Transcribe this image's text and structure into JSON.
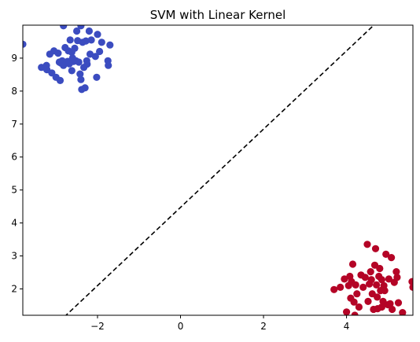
{
  "chart_data": {
    "type": "scatter",
    "title": "SVM with Linear Kernel",
    "xlabel": "",
    "ylabel": "",
    "xlim": [
      -3.8,
      5.6
    ],
    "ylim": [
      1.2,
      10.0
    ],
    "xticks": [
      -2,
      0,
      2,
      4
    ],
    "yticks": [
      2,
      3,
      4,
      5,
      6,
      7,
      8,
      9
    ],
    "grid": false,
    "legend": false,
    "colors": {
      "class_a": "#3b4cc0",
      "class_b": "#b40426",
      "boundary": "#000000"
    },
    "decision_boundary": {
      "style": "dashed",
      "points": [
        [
          -2.8,
          1.15
        ],
        [
          4.7,
          10.05
        ]
      ]
    },
    "series": [
      {
        "points": [
          [
            -3.8,
            9.42
          ],
          [
            -3.35,
            8.72
          ],
          [
            -3.23,
            8.78
          ],
          [
            -3.22,
            8.65
          ],
          [
            -3.15,
            9.12
          ],
          [
            -3.05,
            9.22
          ],
          [
            -2.95,
            9.15
          ],
          [
            -3.0,
            8.42
          ],
          [
            -2.9,
            8.32
          ],
          [
            -2.88,
            8.85
          ],
          [
            -2.85,
            8.92
          ],
          [
            -2.82,
            8.78
          ],
          [
            -2.78,
            9.32
          ],
          [
            -2.72,
            8.9
          ],
          [
            -2.7,
            9.22
          ],
          [
            -2.68,
            8.83
          ],
          [
            -2.66,
            9.55
          ],
          [
            -2.62,
            8.62
          ],
          [
            -2.6,
            9.0
          ],
          [
            -2.58,
            8.9
          ],
          [
            -2.55,
            9.3
          ],
          [
            -2.52,
            8.92
          ],
          [
            -2.5,
            9.82
          ],
          [
            -2.48,
            9.53
          ],
          [
            -2.45,
            8.88
          ],
          [
            -2.42,
            8.52
          ],
          [
            -2.4,
            8.35
          ],
          [
            -2.38,
            8.05
          ],
          [
            -2.36,
            9.48
          ],
          [
            -2.33,
            8.72
          ],
          [
            -2.3,
            8.1
          ],
          [
            -2.28,
            9.52
          ],
          [
            -2.26,
            8.92
          ],
          [
            -2.25,
            8.82
          ],
          [
            -2.2,
            9.82
          ],
          [
            -2.18,
            9.12
          ],
          [
            -2.05,
            9.05
          ],
          [
            -2.02,
            8.42
          ],
          [
            -2.0,
            9.72
          ],
          [
            -1.95,
            9.2
          ],
          [
            -1.9,
            9.48
          ],
          [
            -1.75,
            8.92
          ],
          [
            -1.74,
            8.78
          ],
          [
            -1.7,
            9.4
          ],
          [
            -2.82,
            9.98
          ],
          [
            -2.4,
            9.98
          ],
          [
            -2.62,
            9.18
          ],
          [
            -2.92,
            8.88
          ],
          [
            -2.15,
            9.55
          ],
          [
            -3.1,
            8.55
          ]
        ]
      },
      {
        "points": [
          [
            3.7,
            1.98
          ],
          [
            3.85,
            2.05
          ],
          [
            3.95,
            2.3
          ],
          [
            4.0,
            1.3
          ],
          [
            4.05,
            2.1
          ],
          [
            4.08,
            2.38
          ],
          [
            4.1,
            1.72
          ],
          [
            4.12,
            2.22
          ],
          [
            4.15,
            2.75
          ],
          [
            4.18,
            1.6
          ],
          [
            4.2,
            1.2
          ],
          [
            4.22,
            2.12
          ],
          [
            4.25,
            1.85
          ],
          [
            4.35,
            2.42
          ],
          [
            4.4,
            2.05
          ],
          [
            4.45,
            2.35
          ],
          [
            4.5,
            3.35
          ],
          [
            4.52,
            1.62
          ],
          [
            4.55,
            2.15
          ],
          [
            4.6,
            2.28
          ],
          [
            4.62,
            1.85
          ],
          [
            4.65,
            1.38
          ],
          [
            4.68,
            2.72
          ],
          [
            4.7,
            3.22
          ],
          [
            4.72,
            2.12
          ],
          [
            4.74,
            1.75
          ],
          [
            4.75,
            1.4
          ],
          [
            4.78,
            2.38
          ],
          [
            4.8,
            2.62
          ],
          [
            4.82,
            1.95
          ],
          [
            4.85,
            2.28
          ],
          [
            4.88,
            1.62
          ],
          [
            4.9,
            2.1
          ],
          [
            4.92,
            1.95
          ],
          [
            4.95,
            3.05
          ],
          [
            5.0,
            1.52
          ],
          [
            5.02,
            2.3
          ],
          [
            5.05,
            1.55
          ],
          [
            5.08,
            2.95
          ],
          [
            5.1,
            1.38
          ],
          [
            5.15,
            2.2
          ],
          [
            5.2,
            2.52
          ],
          [
            5.22,
            2.35
          ],
          [
            5.25,
            1.58
          ],
          [
            5.35,
            1.28
          ],
          [
            5.58,
            2.22
          ],
          [
            5.6,
            2.05
          ],
          [
            4.3,
            1.45
          ],
          [
            4.58,
            2.52
          ],
          [
            4.85,
            1.45
          ]
        ]
      }
    ]
  }
}
